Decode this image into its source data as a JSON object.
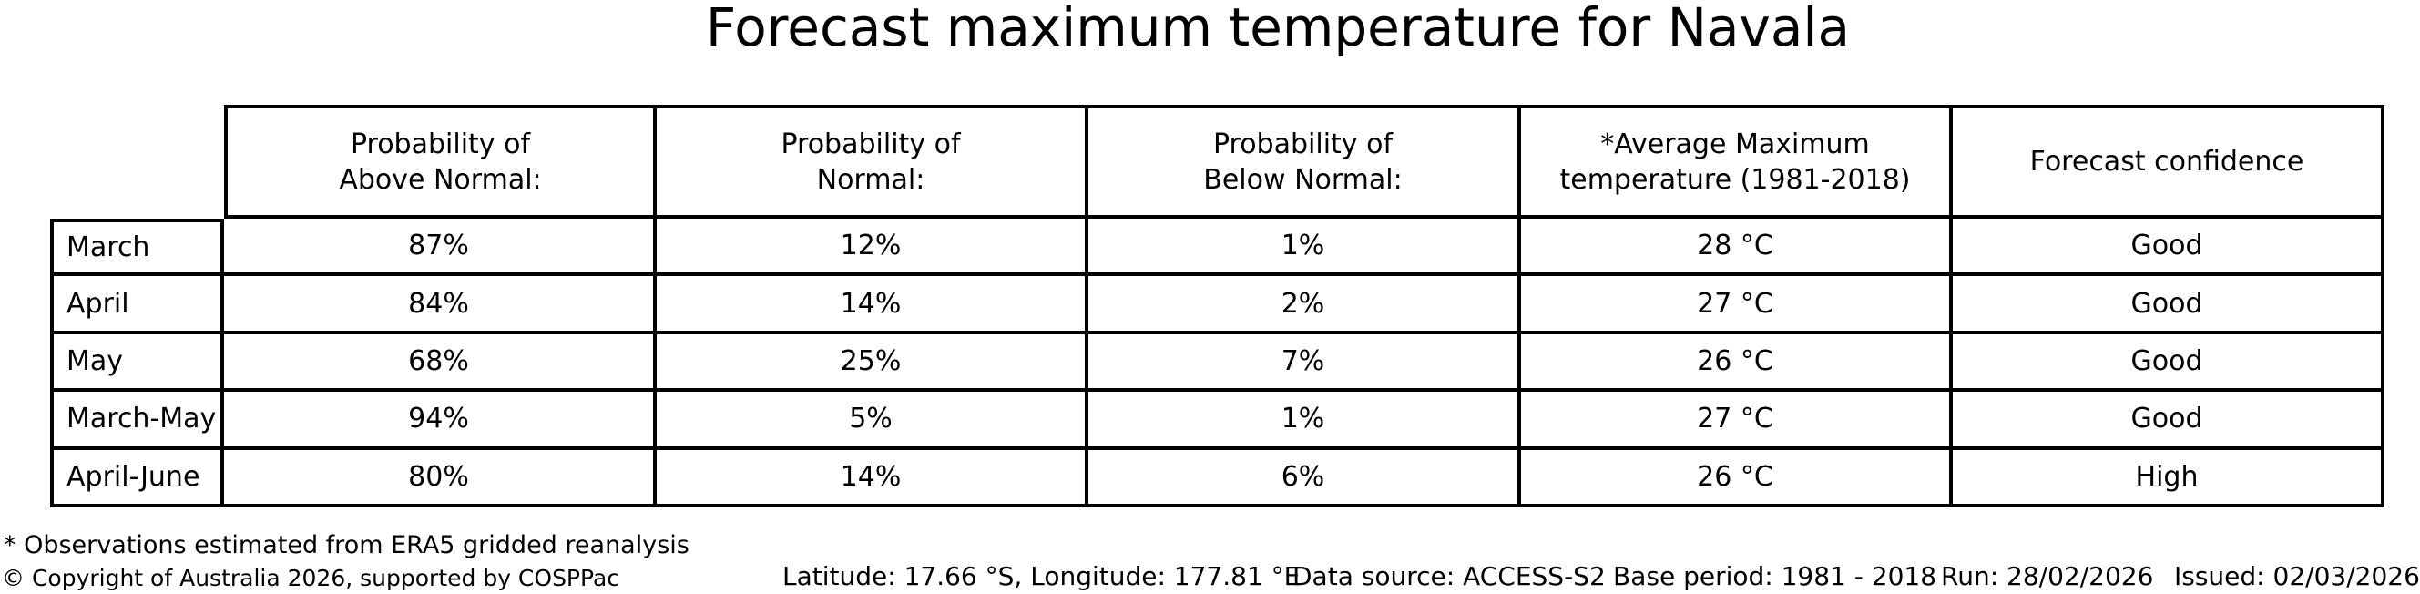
{
  "title": "Forecast maximum temperature for Navala",
  "chart_data": {
    "type": "table",
    "title": "Forecast maximum temperature for Navala",
    "columns": [
      "Probability of\nAbove Normal:",
      "Probability of\nNormal:",
      "Probability of\nBelow Normal:",
      "*Average Maximum\ntemperature (1981-2018)",
      "Forecast confidence"
    ],
    "rows": [
      {
        "label": "March",
        "cells": [
          "87%",
          "12%",
          "1%",
          "28 °C",
          "Good"
        ]
      },
      {
        "label": "April",
        "cells": [
          "84%",
          "14%",
          "2%",
          "27 °C",
          "Good"
        ]
      },
      {
        "label": "May",
        "cells": [
          "68%",
          "25%",
          "7%",
          "26 °C",
          "Good"
        ]
      },
      {
        "label": "March-May",
        "cells": [
          "94%",
          "5%",
          "1%",
          "27 °C",
          "Good"
        ]
      },
      {
        "label": "April-June",
        "cells": [
          "80%",
          "14%",
          "6%",
          "26 °C",
          "High"
        ]
      }
    ]
  },
  "footnote": "* Observations estimated from ERA5 gridded reanalysis",
  "footer": {
    "copyright": "© Copyright of Australia 2026, supported by COSPPac",
    "location": "Latitude: 17.66 °S, Longitude: 177.81 °E",
    "data_source": "Data source: ACCESS-S2",
    "base_period": "Base period: 1981 - 2018",
    "run": "Run: 28/02/2026",
    "issued": "Issued: 02/03/2026"
  },
  "colors": {
    "text": "#000000",
    "border": "#000000",
    "background": "#ffffff"
  }
}
